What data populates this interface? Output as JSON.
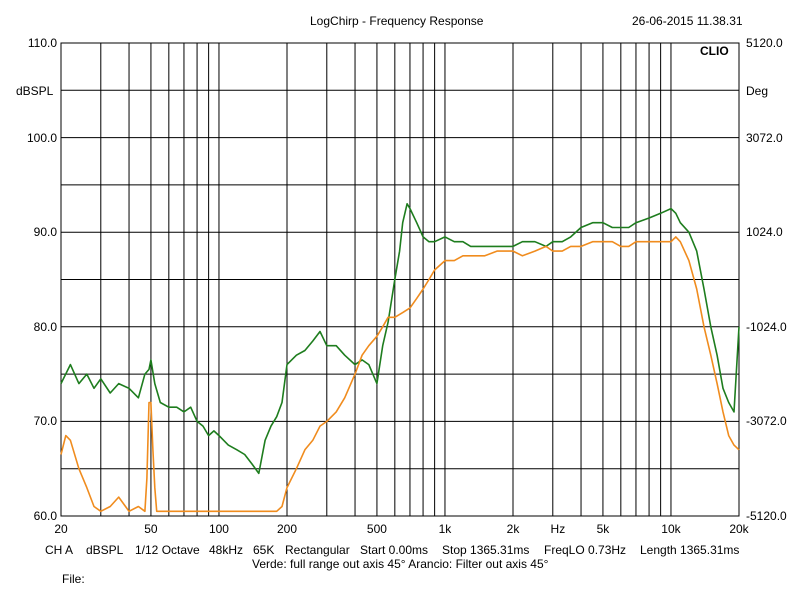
{
  "header": {
    "title": "LogChirp - Frequency Response",
    "timestamp": "26-06-2015 11.38.31",
    "brand": "CLIO"
  },
  "footer": {
    "settings": [
      "CH A",
      "dBSPL",
      "1/12 Octave",
      "48kHz",
      "65K",
      "Rectangular",
      "Start 0.00ms",
      "Stop 1365.31ms",
      "FreqLO 0.73Hz",
      "Length 1365.31ms"
    ],
    "legend_text": "Verde: full range out axis 45°  Arancio: Filter out axis 45°",
    "file_label": "File:"
  },
  "colors": {
    "green": "#1e7d1e",
    "orange": "#f08c1e",
    "grid": "#000000",
    "background": "#ffffff"
  },
  "chart_data": {
    "type": "line",
    "title": "LogChirp - Frequency Response",
    "xlabel": "Hz",
    "ylabel": "dBSPL",
    "ylabel_right": "Deg",
    "x_scale": "log",
    "xlim": [
      20,
      20000
    ],
    "ylim": [
      60,
      110
    ],
    "ylim_right": [
      -5120,
      5120
    ],
    "grid": true,
    "x_tick_labels": [
      "20",
      "50",
      "100",
      "200",
      "500",
      "1k",
      "2k",
      "Hz",
      "5k",
      "10k",
      "20k"
    ],
    "y_tick_labels": [
      "110.0",
      "100.0",
      "90.0",
      "80.0",
      "70.0",
      "60.0"
    ],
    "y_right_tick_labels": [
      "5120.0",
      "3072.0",
      "1024.0",
      "-1024.0",
      "-3072.0",
      "-5120.0"
    ],
    "series": [
      {
        "name": "Verde: full range out axis 45°",
        "color": "#1e7d1e",
        "x": [
          20,
          22,
          24,
          26,
          28,
          30,
          33,
          36,
          40,
          44,
          47,
          49,
          50,
          52,
          55,
          60,
          65,
          70,
          75,
          80,
          85,
          90,
          95,
          100,
          110,
          120,
          130,
          140,
          150,
          160,
          170,
          180,
          190,
          200,
          220,
          240,
          260,
          280,
          300,
          330,
          360,
          400,
          430,
          460,
          500,
          530,
          560,
          600,
          630,
          650,
          680,
          700,
          750,
          800,
          850,
          900,
          1000,
          1100,
          1200,
          1300,
          1500,
          1700,
          2000,
          2200,
          2500,
          2800,
          3000,
          3300,
          3600,
          4000,
          4500,
          5000,
          5500,
          6000,
          6500,
          7000,
          8000,
          9000,
          10000,
          10500,
          11000,
          12000,
          13000,
          14000,
          15000,
          16000,
          17000,
          18000,
          19000,
          20000
        ],
        "y": [
          74,
          76,
          74,
          75,
          73.5,
          74.5,
          73,
          74,
          73.5,
          72.5,
          75,
          75.5,
          76.5,
          74,
          72,
          71.5,
          71.5,
          71,
          71.5,
          70,
          69.5,
          68.5,
          69,
          68.5,
          67.5,
          67,
          66.5,
          65.5,
          64.5,
          68,
          69.5,
          70.5,
          72,
          76,
          77,
          77.5,
          78.5,
          79.5,
          78,
          78,
          77,
          76,
          76.5,
          76,
          74,
          78,
          80.5,
          85,
          88,
          91,
          93,
          92.5,
          91,
          89.5,
          89,
          89,
          89.5,
          89,
          89,
          88.5,
          88.5,
          88.5,
          88.5,
          89,
          89,
          88.5,
          89,
          89,
          89.5,
          90.5,
          91,
          91,
          90.5,
          90.5,
          90.5,
          91,
          91.5,
          92,
          92.5,
          92,
          91,
          90,
          88,
          84,
          80,
          77,
          73.5,
          72,
          71,
          80
        ]
      },
      {
        "name": "Arancio: Filter out axis 45°",
        "color": "#f08c1e",
        "x": [
          20,
          21,
          22,
          24,
          26,
          28,
          30,
          33,
          36,
          40,
          44,
          47,
          48,
          49,
          50,
          51,
          52,
          53,
          180,
          190,
          200,
          220,
          240,
          260,
          280,
          300,
          330,
          360,
          400,
          430,
          460,
          500,
          530,
          560,
          600,
          650,
          700,
          750,
          800,
          850,
          900,
          1000,
          1100,
          1200,
          1300,
          1500,
          1700,
          2000,
          2200,
          2500,
          2800,
          3000,
          3300,
          3600,
          4000,
          4500,
          5000,
          5500,
          6000,
          6500,
          7000,
          8000,
          9000,
          10000,
          10500,
          11000,
          12000,
          13000,
          14000,
          15000,
          16000,
          17000,
          18000,
          19000,
          20000
        ],
        "y": [
          66.5,
          68.5,
          68,
          65,
          63,
          61,
          60.5,
          61,
          62,
          60.5,
          61,
          60.5,
          64,
          72,
          72,
          67,
          63,
          60.5,
          60.5,
          61,
          63,
          65,
          67,
          68,
          69.5,
          70,
          71,
          72.5,
          75,
          77,
          78,
          79,
          80,
          81,
          81,
          81.5,
          82,
          83,
          84,
          85,
          86,
          87,
          87,
          87.5,
          87.5,
          87.5,
          88,
          88,
          87.5,
          88,
          88.5,
          88,
          88,
          88.5,
          88.5,
          89,
          89,
          89,
          88.5,
          88.5,
          89,
          89,
          89,
          89,
          89.5,
          89,
          87,
          84,
          80,
          77,
          74,
          71,
          68.5,
          67.5,
          67
        ]
      }
    ]
  }
}
